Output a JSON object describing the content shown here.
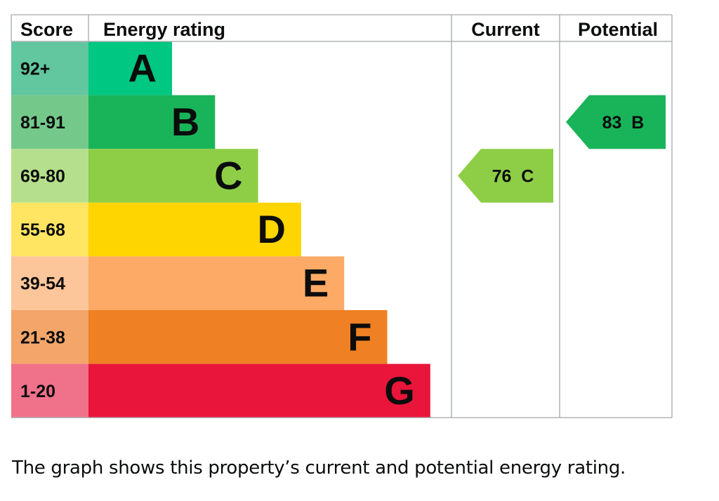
{
  "chart_data": {
    "type": "bar",
    "columns": {
      "score": "Score",
      "energy_rating": "Energy rating",
      "current": "Current",
      "potential": "Potential"
    },
    "bands": [
      {
        "score": "92+",
        "rating": "A",
        "bar_color": "#00c781",
        "score_color": "#62c69f"
      },
      {
        "score": "81-91",
        "rating": "B",
        "bar_color": "#19b459",
        "score_color": "#74c98a"
      },
      {
        "score": "69-80",
        "rating": "C",
        "bar_color": "#8dce46",
        "score_color": "#b5df8c"
      },
      {
        "score": "55-68",
        "rating": "D",
        "bar_color": "#ffd500",
        "score_color": "#ffe561"
      },
      {
        "score": "39-54",
        "rating": "E",
        "bar_color": "#fcaa65",
        "score_color": "#fdc69a"
      },
      {
        "score": "21-38",
        "rating": "F",
        "bar_color": "#ef8023",
        "score_color": "#f3a56a"
      },
      {
        "score": "1-20",
        "rating": "G",
        "bar_color": "#e9153b",
        "score_color": "#f0718a"
      }
    ],
    "current": {
      "value": 76,
      "rating": "C",
      "label": "76  C",
      "color": "#8dce46"
    },
    "potential": {
      "value": 83,
      "rating": "B",
      "label": "83  B",
      "color": "#19b459"
    }
  },
  "caption": "The graph shows this property’s current and potential energy rating."
}
